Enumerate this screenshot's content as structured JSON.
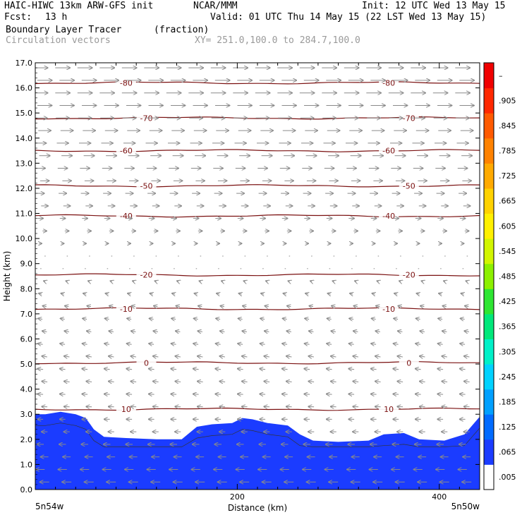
{
  "header": {
    "model": "HAIC-HIWC 13km ARW-GFS init",
    "center": "NCAR/MMM",
    "init": "Init: 12 UTC Wed 13 May 15",
    "fcst_label": "Fcst:",
    "fcst_value": "13 h",
    "valid": "Valid: 01 UTC Thu 14 May 15 (22 LST Wed 13 May 15)",
    "field1_name": "Boundary Layer Tracer",
    "field1_units": "(fraction)",
    "field2_name": "Circulation vectors",
    "xy_range": "XY= 251.0,100.0 to 284.7,100.0"
  },
  "chart_data": {
    "type": "heatmap",
    "xlabel": "Distance (km)",
    "ylabel": "Height (km)",
    "xlim": [
      0,
      440
    ],
    "ylim": [
      0,
      17
    ],
    "x_ticks": [
      200,
      400
    ],
    "y_ticks": [
      0.0,
      1.0,
      2.0,
      3.0,
      4.0,
      5.0,
      6.0,
      7.0,
      8.0,
      9.0,
      10.0,
      11.0,
      12.0,
      13.0,
      14.0,
      15.0,
      16.0,
      17.0
    ],
    "x_end_labels": [
      "5n54w",
      "5n50w"
    ],
    "colorbar": {
      "min": 0.005,
      "max": 1.0,
      "labels": [
        ".005",
        ".065",
        ".125",
        ".185",
        ".245",
        ".305",
        ".365",
        ".425",
        ".485",
        ".545",
        ".605",
        ".665",
        ".725",
        ".785",
        ".845",
        ".905",
        "–"
      ],
      "colors": [
        "#ffffff",
        "#1b3cff",
        "#006bff",
        "#00a0ff",
        "#00d2ff",
        "#00f0c8",
        "#00e87a",
        "#2ee632",
        "#8cf000",
        "#d2f500",
        "#fff000",
        "#ffd200",
        "#ffaa00",
        "#ff8200",
        "#ff5a00",
        "#ff2800",
        "#f00000"
      ]
    },
    "tracer_top_km": [
      [
        0,
        3.0
      ],
      [
        10,
        3.0
      ],
      [
        25,
        3.1
      ],
      [
        40,
        3.0
      ],
      [
        50,
        2.85
      ],
      [
        58,
        2.4
      ],
      [
        68,
        2.1
      ],
      [
        90,
        2.05
      ],
      [
        120,
        2.0
      ],
      [
        145,
        2.0
      ],
      [
        160,
        2.5
      ],
      [
        175,
        2.6
      ],
      [
        195,
        2.65
      ],
      [
        205,
        2.85
      ],
      [
        215,
        2.8
      ],
      [
        230,
        2.65
      ],
      [
        250,
        2.55
      ],
      [
        262,
        2.2
      ],
      [
        275,
        1.95
      ],
      [
        300,
        1.9
      ],
      [
        330,
        1.95
      ],
      [
        345,
        2.2
      ],
      [
        365,
        2.25
      ],
      [
        380,
        2.0
      ],
      [
        405,
        1.95
      ],
      [
        425,
        2.2
      ],
      [
        440,
        2.9
      ]
    ],
    "temperature_contours_c": [
      {
        "value": 10,
        "height_km": 3.2,
        "label": "10"
      },
      {
        "value": 0,
        "height_km": 5.05,
        "label": "0"
      },
      {
        "value": -10,
        "height_km": 7.2,
        "label": "-10"
      },
      {
        "value": -20,
        "height_km": 8.55,
        "label": "-20"
      },
      {
        "value": -40,
        "height_km": 10.9,
        "label": "-40"
      },
      {
        "value": -50,
        "height_km": 12.1,
        "label": "-50"
      },
      {
        "value": -60,
        "height_km": 13.5,
        "label": "-60"
      },
      {
        "value": -70,
        "height_km": 14.8,
        "label": "-70"
      },
      {
        "value": -80,
        "height_km": 16.2,
        "label": "-80"
      }
    ],
    "vector_wind_profile": [
      {
        "height_km": 0.5,
        "u": -5,
        "w": 0
      },
      {
        "height_km": 2.5,
        "u": -3,
        "w": 0
      },
      {
        "height_km": 5.0,
        "u": -3,
        "w": 0.2
      },
      {
        "height_km": 7.5,
        "u": -2,
        "w": 0.2
      },
      {
        "height_km": 9.5,
        "u": 1,
        "w": 0
      },
      {
        "height_km": 11.5,
        "u": 4,
        "w": 0
      },
      {
        "height_km": 13.5,
        "u": 6,
        "w": 0
      },
      {
        "height_km": 15.5,
        "u": 8,
        "w": 0
      },
      {
        "height_km": 17.0,
        "u": 8,
        "w": 0
      }
    ]
  }
}
